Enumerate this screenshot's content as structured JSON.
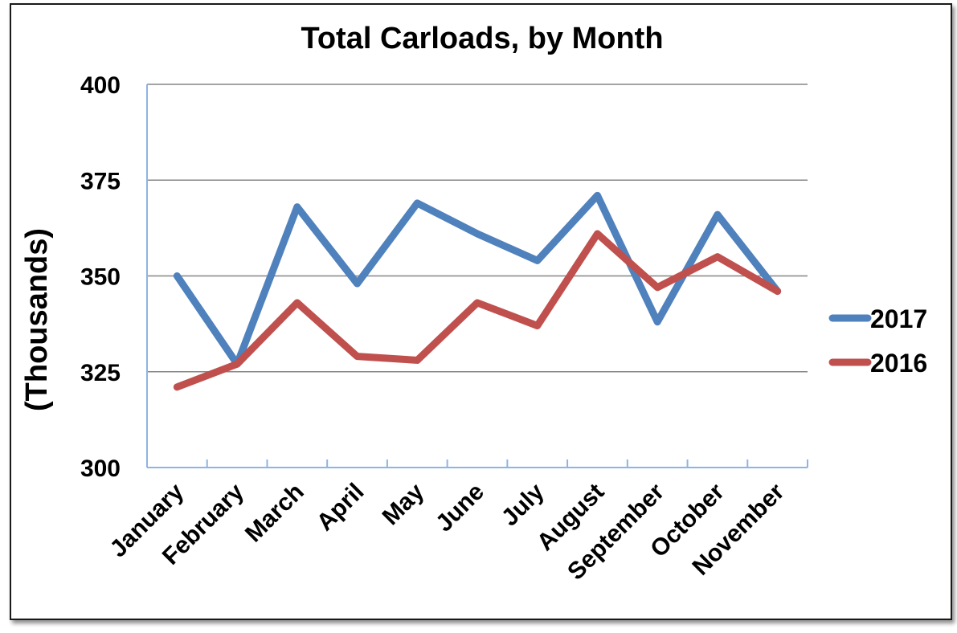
{
  "chart_data": {
    "type": "line",
    "title": "Total Carloads, by Month",
    "ylabel": "(Thousands)",
    "xlabel": "",
    "ylim": [
      300,
      400
    ],
    "yticks": [
      300,
      325,
      350,
      375,
      400
    ],
    "grid": true,
    "legend_position": "right",
    "categories": [
      "January",
      "February",
      "March",
      "April",
      "May",
      "June",
      "July",
      "August",
      "September",
      "October",
      "November"
    ],
    "series": [
      {
        "name": "2017",
        "color": "#4f81bd",
        "values": [
          350,
          327,
          368,
          348,
          369,
          361,
          354,
          371,
          338,
          366,
          346
        ]
      },
      {
        "name": "2016",
        "color": "#c0504d",
        "values": [
          321,
          327,
          343,
          329,
          328,
          343,
          337,
          361,
          347,
          355,
          346
        ]
      }
    ]
  }
}
